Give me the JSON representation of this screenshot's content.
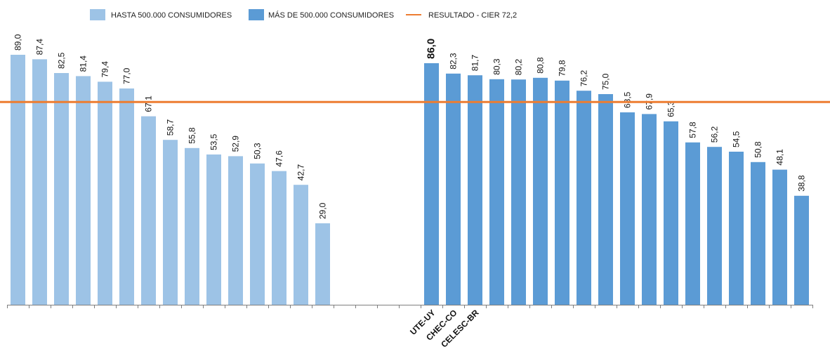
{
  "chart_data": {
    "type": "bar",
    "legend": {
      "placement": "top-left",
      "entries": [
        {
          "key": "hasta",
          "label": "HASTA 500.000 CONSUMIDORES",
          "color": "#9DC3E6"
        },
        {
          "key": "mas",
          "label": "MÁS DE 500.000 CONSUMIDORES",
          "color": "#5B9BD5"
        },
        {
          "key": "resultado",
          "label": "RESULTADO -  CIER 72,2",
          "color": "#ED7D31"
        }
      ]
    },
    "reference_line": {
      "value": 72.2,
      "color": "#ED7D31"
    },
    "ylim": [
      0,
      100
    ],
    "grid": false,
    "series": [
      {
        "key": "hasta",
        "color": "#9DC3E6",
        "values": [
          89.0,
          87.4,
          82.5,
          81.4,
          79.4,
          77.0,
          67.1,
          58.7,
          55.8,
          53.5,
          52.9,
          50.3,
          47.6,
          42.7,
          29.0
        ],
        "labels": [
          "89,0",
          "87,4",
          "82,5",
          "81,4",
          "79,4",
          "77,0",
          "67,1",
          "58,7",
          "55,8",
          "53,5",
          "52,9",
          "50,3",
          "47,6",
          "42,7",
          "29,0"
        ]
      },
      {
        "key": "mas",
        "color": "#5B9BD5",
        "values": [
          86.0,
          82.3,
          81.7,
          80.3,
          80.2,
          80.8,
          79.8,
          76.2,
          75.0,
          68.5,
          67.9,
          65.3,
          57.8,
          56.2,
          54.5,
          50.8,
          48.1,
          38.8
        ],
        "labels": [
          "86,0",
          "82,3",
          "81,7",
          "80,3",
          "80,2",
          "80,8",
          "79,8",
          "76,2",
          "75,0",
          "68,5",
          "67,9",
          "65,3",
          "57,8",
          "56,2",
          "54,5",
          "50,8",
          "48,1",
          "38,8"
        ],
        "highlight_index": 0
      }
    ],
    "categories_shown": [
      "UTE-UY",
      "CHEC-CO",
      "CELESC-BR"
    ]
  }
}
